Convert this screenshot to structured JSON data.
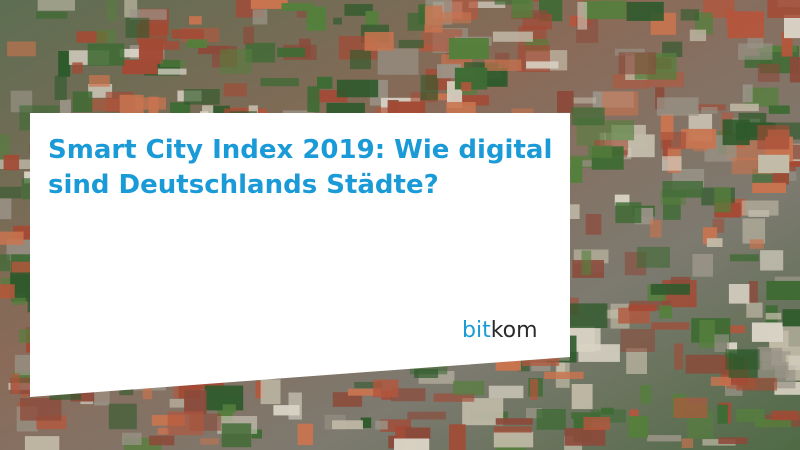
{
  "title": [
    "Smart City Index 2019: Wie digital",
    "sind Deutschlands Städte?"
  ],
  "logo": [
    "bit",
    "kom"
  ]
}
